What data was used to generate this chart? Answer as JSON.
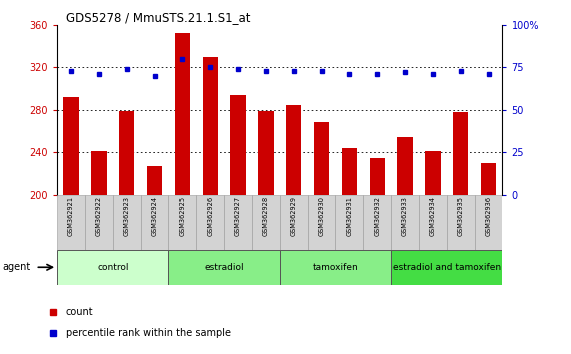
{
  "title": "GDS5278 / MmuSTS.21.1.S1_at",
  "samples": [
    "GSM362921",
    "GSM362922",
    "GSM362923",
    "GSM362924",
    "GSM362925",
    "GSM362926",
    "GSM362927",
    "GSM362928",
    "GSM362929",
    "GSM362930",
    "GSM362931",
    "GSM362932",
    "GSM362933",
    "GSM362934",
    "GSM362935",
    "GSM362936"
  ],
  "count_values": [
    292,
    241,
    279,
    227,
    352,
    330,
    294,
    279,
    284,
    268,
    244,
    235,
    254,
    241,
    278,
    230
  ],
  "percentile_values": [
    73,
    71,
    74,
    70,
    80,
    75,
    74,
    73,
    73,
    73,
    71,
    71,
    72,
    71,
    73,
    71
  ],
  "bar_color": "#cc0000",
  "dot_color": "#0000cc",
  "ylim_left": [
    200,
    360
  ],
  "ylim_right": [
    0,
    100
  ],
  "yticks_left": [
    200,
    240,
    280,
    320,
    360
  ],
  "yticks_right": [
    0,
    25,
    50,
    75,
    100
  ],
  "yticklabels_right": [
    "0",
    "25",
    "50",
    "75",
    "100%"
  ],
  "groups": [
    {
      "label": "control",
      "start": 0,
      "end": 3,
      "color": "#ccffcc"
    },
    {
      "label": "estradiol",
      "start": 4,
      "end": 7,
      "color": "#88ee88"
    },
    {
      "label": "tamoxifen",
      "start": 8,
      "end": 11,
      "color": "#88ee88"
    },
    {
      "label": "estradiol and tamoxifen",
      "start": 12,
      "end": 15,
      "color": "#44dd44"
    }
  ],
  "agent_label": "agent",
  "legend_count_label": "count",
  "legend_pct_label": "percentile rank within the sample",
  "bar_width": 0.55,
  "grid_color": "#000000",
  "tick_color_left": "#cc0000",
  "tick_color_right": "#0000cc",
  "bg_plot": "#ffffff"
}
